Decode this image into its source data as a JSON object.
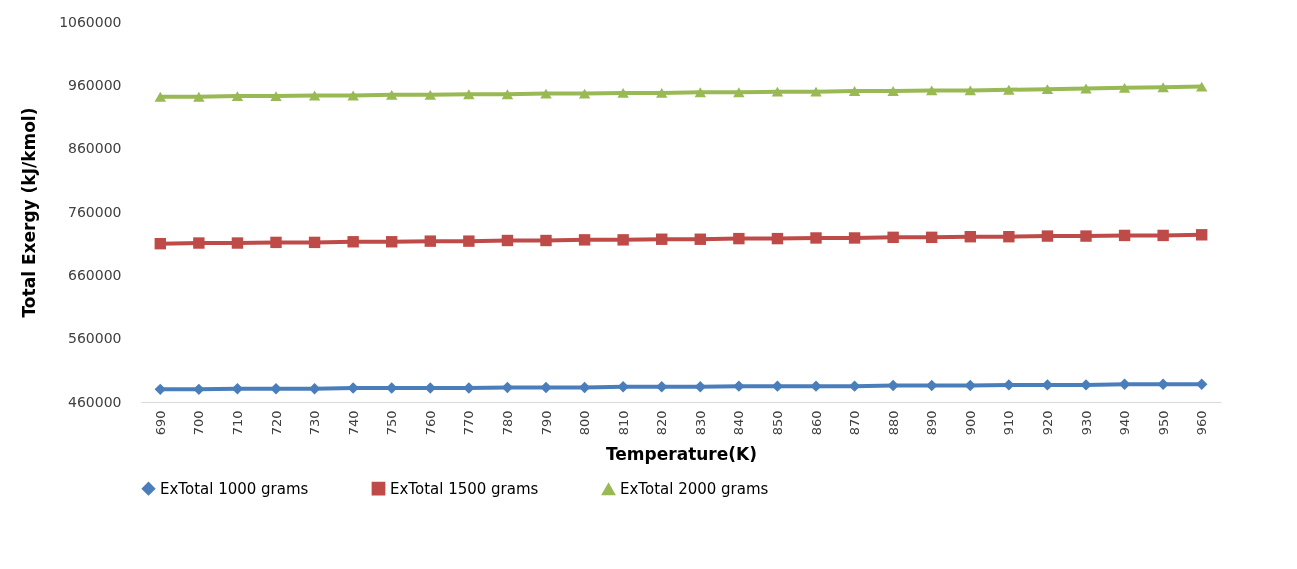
{
  "chart_data": {
    "type": "line",
    "xlabel": "Temperature(K)",
    "ylabel": "Total Exergy (kJ/kmol)",
    "categories": [
      "690",
      "700",
      "710",
      "720",
      "730",
      "740",
      "750",
      "760",
      "770",
      "780",
      "790",
      "800",
      "810",
      "820",
      "830",
      "840",
      "850",
      "860",
      "870",
      "880",
      "890",
      "900",
      "910",
      "920",
      "930",
      "940",
      "950",
      "960"
    ],
    "ylim": [
      460000,
      1060000
    ],
    "yticks": [
      460000,
      560000,
      660000,
      760000,
      860000,
      960000,
      1060000
    ],
    "grid": false,
    "legend": "bottom",
    "series": [
      {
        "name": "ExTotal 1000 grams",
        "color": "#4a7ebb",
        "marker": "diamond",
        "values": [
          480000,
          480000,
          481000,
          481000,
          481000,
          482000,
          482000,
          482000,
          482000,
          483000,
          483000,
          483000,
          484000,
          484000,
          484000,
          485000,
          485000,
          485000,
          485000,
          486000,
          486000,
          486000,
          487000,
          487000,
          487000,
          488000,
          488000,
          488000
        ]
      },
      {
        "name": "ExTotal 1500 grams",
        "color": "#be4b48",
        "marker": "square",
        "values": [
          710000,
          711000,
          711000,
          712000,
          712000,
          713000,
          713000,
          714000,
          714000,
          715000,
          715000,
          716000,
          716000,
          717000,
          717000,
          718000,
          718000,
          719000,
          719000,
          720000,
          720000,
          721000,
          721000,
          722000,
          722000,
          723000,
          723000,
          724000
        ]
      },
      {
        "name": "ExTotal 2000 grams",
        "color": "#98b954",
        "marker": "triangle",
        "values": [
          942000,
          942000,
          943000,
          943000,
          944000,
          944000,
          945000,
          945000,
          946000,
          946000,
          947000,
          947000,
          948000,
          948000,
          949000,
          949000,
          950000,
          950000,
          951000,
          951000,
          952000,
          952000,
          953000,
          954000,
          955000,
          956000,
          957000,
          958000
        ]
      }
    ]
  }
}
